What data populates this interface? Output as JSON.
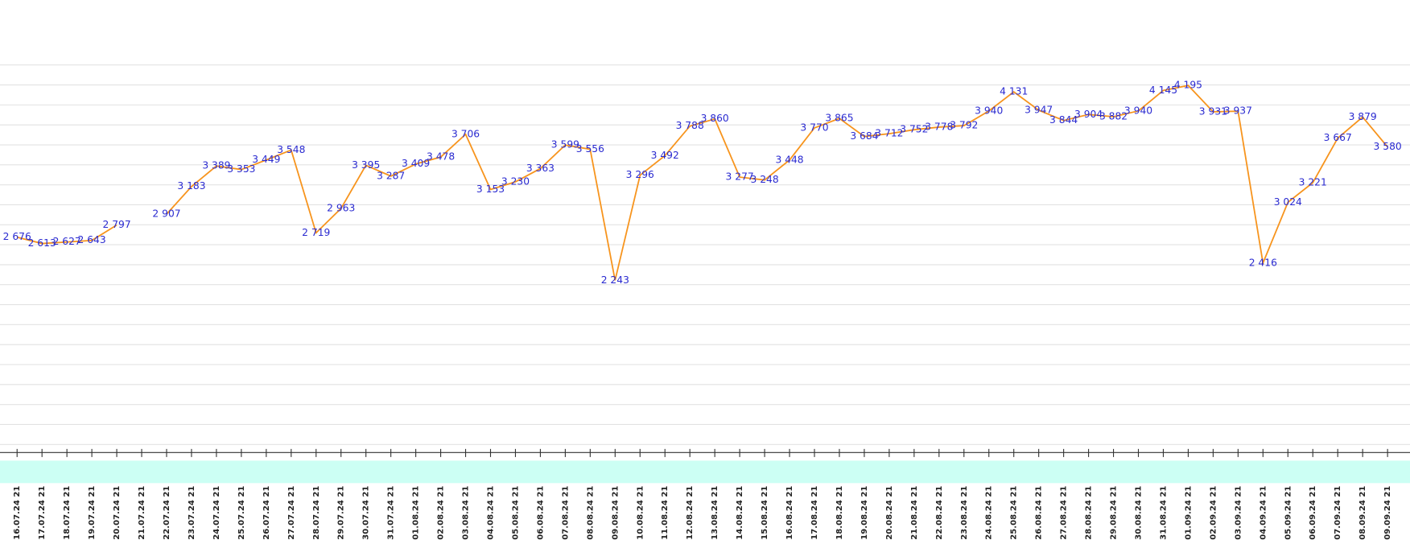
{
  "chart_data": {
    "type": "line",
    "categories": [
      "16.07.24 21",
      "17.07.24 21",
      "18.07.24 21",
      "19.07.24 21",
      "20.07.24 21",
      "21.07.24 21",
      "22.07.24 21",
      "23.07.24 21",
      "24.07.24 21",
      "25.07.24 21",
      "26.07.24 21",
      "27.07.24 21",
      "28.07.24 21",
      "29.07.24 21",
      "30.07.24 21",
      "31.07.24 21",
      "01.08.24 21",
      "02.08.24 21",
      "03.08.24 21",
      "04.08.24 21",
      "05.08.24 21",
      "06.08.24 21",
      "07.08.24 21",
      "08.08.24 21",
      "09.08.24 21",
      "10.08.24 21",
      "11.08.24 21",
      "12.08.24 21",
      "13.08.24 21",
      "14.08.24 21",
      "15.08.24 21",
      "16.08.24 21",
      "17.08.24 21",
      "18.08.24 21",
      "19.08.24 21",
      "20.08.24 21",
      "21.08.24 21",
      "22.08.24 21",
      "23.08.24 21",
      "24.08.24 21",
      "25.08.24 21",
      "26.08.24 21",
      "27.08.24 21",
      "28.08.24 21",
      "29.08.24 21",
      "30.08.24 21",
      "31.08.24 21",
      "01.09.24 21",
      "02.09.24 21",
      "03.09.24 21",
      "04.09.24 21",
      "05.09.24 21",
      "06.09.24 21",
      "07.09.24 21",
      "08.09.24 21",
      "09.09.24 21"
    ],
    "values": [
      2676,
      2613,
      2627,
      2643,
      2797,
      null,
      2907,
      3183,
      3389,
      3353,
      3449,
      3548,
      2719,
      2963,
      3395,
      3287,
      3409,
      3478,
      3706,
      3153,
      3230,
      3363,
      3599,
      3556,
      2243,
      3296,
      3492,
      3788,
      3860,
      3277,
      3248,
      3448,
      3770,
      3865,
      3684,
      3712,
      3752,
      3778,
      3792,
      3940,
      4131,
      3947,
      3844,
      3904,
      3882,
      3940,
      4145,
      4195,
      3931,
      3937,
      2416,
      3024,
      3221,
      3667,
      3879,
      3580
    ],
    "value_labels": [
      "2 676",
      "2 613",
      "2 627",
      "2 643",
      "2 797",
      null,
      "2 907",
      "3 183",
      "3 389",
      "3 353",
      "3 449",
      "3 548",
      "2 719",
      "2 963",
      "3 395",
      "3 287",
      "3 409",
      "3 478",
      "3 706",
      "3 153",
      "3 230",
      "3 363",
      "3 599",
      "3 556",
      "2 243",
      "3 296",
      "3 492",
      "3 788",
      "3 860",
      "3 277",
      "3 248",
      "3 448",
      "3 770",
      "3 865",
      "3 684",
      "3 712",
      "3 752",
      "3 778",
      "3 792",
      "3 940",
      "4 131",
      "3 947",
      "3 844",
      "3 904",
      "3 882",
      "3 940",
      "4 145",
      "4 195",
      "3 931",
      "3 937",
      "2 416",
      "3 024",
      "3 221",
      "3 667",
      "3 879",
      "3 580"
    ],
    "color": "#f7941d",
    "label_color": "#2a2ad0",
    "band_color": "#ccfff4",
    "ylim": [
      600,
      4400
    ],
    "yticks": [
      600,
      800,
      1000,
      1200,
      1400,
      1600,
      1800,
      2000,
      2200,
      2400,
      2600,
      2800,
      3000,
      3200,
      3400,
      3600,
      3800,
      4000,
      4200,
      4400
    ],
    "grid": true
  }
}
